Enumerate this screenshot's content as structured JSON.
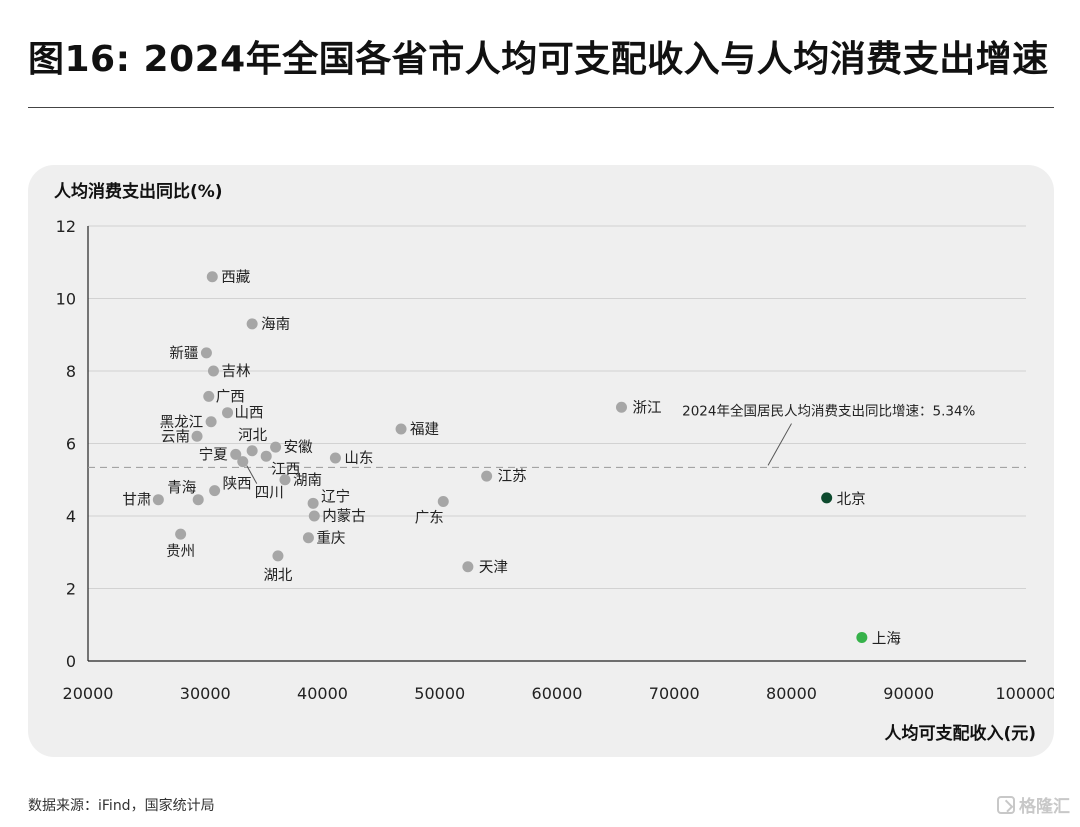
{
  "title": "图16: 2024年全国各省市人均可支配收入与人均消费支出增速",
  "source": "数据来源：iFind，国家统计局",
  "watermark": "格隆汇",
  "colors": {
    "point": "#a6a6a6",
    "beijing": "#0d4a2e",
    "shanghai": "#36b24a",
    "grid": "#d2d2d2",
    "refline": "#9a9a9a"
  },
  "chart_data": {
    "type": "scatter",
    "ylabel": "人均消费支出同比(%)",
    "xlabel": "人均可支配收入(元)",
    "xlim": [
      20000,
      100000
    ],
    "ylim": [
      0,
      12
    ],
    "xticks": [
      "20000",
      "30000",
      "40000",
      "50000",
      "60000",
      "70000",
      "80000",
      "90000",
      "100000"
    ],
    "yticks": [
      "0",
      "2",
      "4",
      "6",
      "8",
      "10",
      "12"
    ],
    "grid": "horizontal",
    "reference_line": {
      "y": 5.34,
      "label": "2024年全国居民人均消费支出同比增速：5.34%"
    },
    "points": [
      {
        "name": "西藏",
        "x": 30600,
        "y": 10.6
      },
      {
        "name": "海南",
        "x": 34000,
        "y": 9.3
      },
      {
        "name": "新疆",
        "x": 30100,
        "y": 8.5
      },
      {
        "name": "吉林",
        "x": 30700,
        "y": 8.0
      },
      {
        "name": "广西",
        "x": 30300,
        "y": 7.3
      },
      {
        "name": "山西",
        "x": 31900,
        "y": 6.85
      },
      {
        "name": "黑龙江",
        "x": 30500,
        "y": 6.6
      },
      {
        "name": "云南",
        "x": 29300,
        "y": 6.2
      },
      {
        "name": "河北",
        "x": 34000,
        "y": 5.8
      },
      {
        "name": "宁夏",
        "x": 32600,
        "y": 5.7
      },
      {
        "name": "四川",
        "x": 33200,
        "y": 5.5
      },
      {
        "name": "江西",
        "x": 35200,
        "y": 5.65
      },
      {
        "name": "安徽",
        "x": 36000,
        "y": 5.9
      },
      {
        "name": "山东",
        "x": 41100,
        "y": 5.6
      },
      {
        "name": "福建",
        "x": 46700,
        "y": 6.4
      },
      {
        "name": "浙江",
        "x": 65500,
        "y": 7.0
      },
      {
        "name": "陕西",
        "x": 30800,
        "y": 4.7
      },
      {
        "name": "湖南",
        "x": 36800,
        "y": 5.0
      },
      {
        "name": "青海",
        "x": 29400,
        "y": 4.45
      },
      {
        "name": "甘肃",
        "x": 26000,
        "y": 4.45
      },
      {
        "name": "辽宁",
        "x": 39200,
        "y": 4.35
      },
      {
        "name": "内蒙古",
        "x": 39300,
        "y": 4.0
      },
      {
        "name": "广东",
        "x": 50300,
        "y": 4.4
      },
      {
        "name": "江苏",
        "x": 54000,
        "y": 5.1
      },
      {
        "name": "重庆",
        "x": 38800,
        "y": 3.4
      },
      {
        "name": "贵州",
        "x": 27900,
        "y": 3.5
      },
      {
        "name": "湖北",
        "x": 36200,
        "y": 2.9
      },
      {
        "name": "天津",
        "x": 52400,
        "y": 2.6
      },
      {
        "name": "北京",
        "x": 83000,
        "y": 4.5
      },
      {
        "name": "上海",
        "x": 86000,
        "y": 0.65
      }
    ]
  }
}
